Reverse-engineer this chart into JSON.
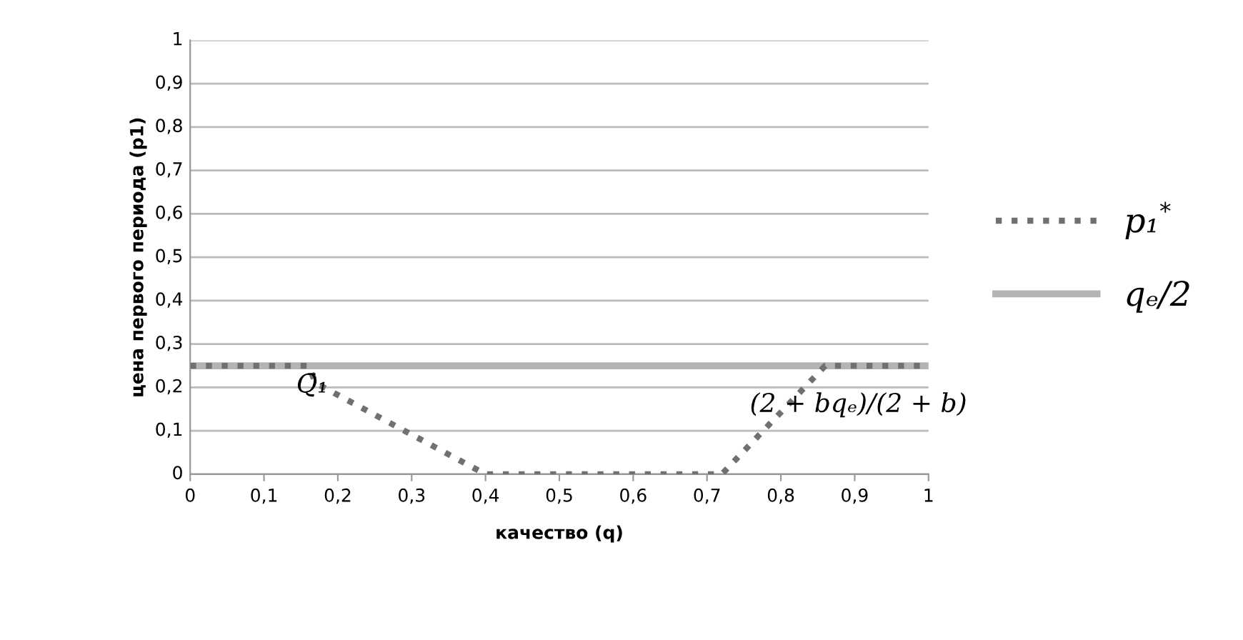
{
  "chart_data": {
    "type": "line",
    "xlabel": "качество (q)",
    "ylabel": "цена первого периода (p1)",
    "xlim": [
      0,
      1
    ],
    "ylim": [
      0,
      1
    ],
    "xticks": [
      0,
      {
        "value": 0.1,
        "label": "0,1"
      },
      {
        "value": 0.2,
        "label": "0,2"
      },
      {
        "value": 0.3,
        "label": "0,3"
      },
      {
        "value": 0.4,
        "label": "0,4"
      },
      {
        "value": 0.5,
        "label": "0,5"
      },
      {
        "value": 0.6,
        "label": "0,6"
      },
      {
        "value": 0.7,
        "label": "0,7"
      },
      {
        "value": 0.8,
        "label": "0,8"
      },
      {
        "value": 0.9,
        "label": "0,9"
      },
      1
    ],
    "yticks": [
      0,
      {
        "value": 0.1,
        "label": "0,1"
      },
      {
        "value": 0.2,
        "label": "0,2"
      },
      {
        "value": 0.3,
        "label": "0,3"
      },
      {
        "value": 0.4,
        "label": "0,4"
      },
      {
        "value": 0.5,
        "label": "0,5"
      },
      {
        "value": 0.6,
        "label": "0,6"
      },
      {
        "value": 0.7,
        "label": "0,7"
      },
      {
        "value": 0.8,
        "label": "0,8"
      },
      {
        "value": 0.9,
        "label": "0,9"
      },
      1
    ],
    "grid": "y",
    "legend": "right",
    "series": [
      {
        "name": "p₁$^{*}$",
        "color": "#707070",
        "line_style": "dotted",
        "x": [
          0,
          0.16,
          0.17,
          0.4,
          0.72,
          0.86,
          1
        ],
        "values": [
          0.25,
          0.25,
          0.21,
          0,
          0,
          0.25,
          0.25
        ]
      },
      {
        "name": "qₑ/2",
        "color": "#b4b4b4",
        "line_style": "solid",
        "x": [
          0,
          1
        ],
        "values": [
          0.25,
          0.25
        ]
      }
    ],
    "annotations": [
      "Q̄₁",
      "(2 + bqₑ)/(2 + b)"
    ]
  }
}
